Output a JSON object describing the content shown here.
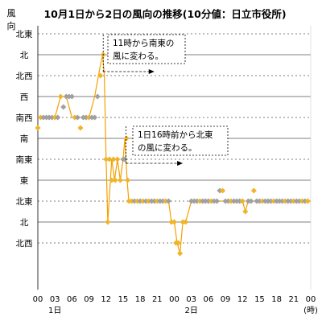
{
  "chart_data": {
    "type": "line",
    "title": "10月1日から2日の風向の推移(10分値：日立市役所)",
    "ylabel": "風向",
    "y_categories": [
      "北西",
      "北",
      "北東",
      "東",
      "南東",
      "南",
      "南西",
      "西",
      "北西",
      "北",
      "北東"
    ],
    "x_ticks": [
      "00",
      "03",
      "06",
      "09",
      "12",
      "15",
      "18",
      "21",
      "00",
      "03",
      "06",
      "09",
      "12",
      "15",
      "18",
      "21",
      "00"
    ],
    "x_sub_labels": [
      {
        "hour": 3,
        "text": "1日"
      },
      {
        "hour": 27,
        "text": "2日"
      },
      {
        "hour": 48,
        "text": "(時)"
      }
    ],
    "xlim": [
      0,
      48
    ],
    "ylim": [
      -0.5,
      10.5
    ],
    "colors": {
      "line": "#f5a000",
      "marker_orange": "#f0b429",
      "marker_gray": "#a0a0a0",
      "grid": "#000000",
      "arrow": "#000000"
    },
    "annotations": [
      {
        "text": [
          "11時から南東の",
          "風に変わる。"
        ],
        "anchor_hour": 11.5,
        "arrow_to_hour": 20.5
      },
      {
        "text": [
          "1日16時前から北東",
          "の風に変わる。"
        ],
        "anchor_hour": 15.5,
        "arrow_to_hour": 25.5
      }
    ],
    "series": [
      {
        "type": "line",
        "points": [
          [
            0,
            6
          ],
          [
            1,
            6
          ],
          [
            2,
            6
          ],
          [
            3,
            6
          ],
          [
            4,
            7
          ],
          [
            5,
            7
          ],
          [
            6,
            6
          ],
          [
            7,
            6
          ],
          [
            8,
            6
          ],
          [
            9,
            6
          ],
          [
            10,
            7
          ],
          [
            11,
            8.5
          ],
          [
            11.4,
            9
          ],
          [
            11.7,
            8
          ],
          [
            12,
            4
          ],
          [
            12.3,
            1
          ],
          [
            13,
            4
          ],
          [
            13.5,
            3
          ],
          [
            14,
            4
          ],
          [
            14.5,
            3
          ],
          [
            15,
            4
          ],
          [
            15.3,
            5
          ],
          [
            15.7,
            3
          ],
          [
            16,
            2
          ],
          [
            17,
            2
          ],
          [
            18,
            2
          ],
          [
            19,
            2
          ],
          [
            20,
            2
          ],
          [
            21,
            2
          ],
          [
            22,
            2
          ],
          [
            23,
            2
          ],
          [
            23.5,
            1
          ],
          [
            24,
            1
          ],
          [
            24.5,
            0
          ],
          [
            25,
            -0.5
          ],
          [
            25.5,
            1
          ],
          [
            26,
            1
          ],
          [
            27,
            2
          ],
          [
            28,
            2
          ],
          [
            29,
            2
          ],
          [
            30,
            2
          ],
          [
            31,
            2
          ],
          [
            32,
            2
          ],
          [
            33,
            2
          ],
          [
            34,
            2
          ],
          [
            35,
            2
          ],
          [
            36,
            2
          ],
          [
            36.5,
            1.5
          ],
          [
            37,
            2
          ],
          [
            38,
            2
          ],
          [
            39,
            2
          ],
          [
            40,
            2
          ],
          [
            41,
            2
          ],
          [
            42,
            2
          ],
          [
            43,
            2
          ],
          [
            44,
            2
          ],
          [
            45,
            2
          ],
          [
            46,
            2
          ],
          [
            47,
            2
          ],
          [
            48,
            2
          ]
        ],
        "markers": [
          [
            0,
            5.5,
            "o"
          ],
          [
            0.5,
            6,
            "o"
          ],
          [
            1,
            6,
            "g"
          ],
          [
            1.5,
            6,
            "g"
          ],
          [
            2,
            6,
            "g"
          ],
          [
            2.5,
            6,
            "g"
          ],
          [
            3,
            6,
            "o"
          ],
          [
            3.5,
            6,
            "g"
          ],
          [
            4,
            7,
            "o"
          ],
          [
            4.5,
            6.5,
            "g"
          ],
          [
            5,
            7,
            "g"
          ],
          [
            5.5,
            7,
            "g"
          ],
          [
            6,
            7,
            "g"
          ],
          [
            6.5,
            6,
            "o"
          ],
          [
            7,
            6,
            "g"
          ],
          [
            7.5,
            5.5,
            "o"
          ],
          [
            8,
            6,
            "g"
          ],
          [
            8.5,
            6,
            "g"
          ],
          [
            9,
            6,
            "o"
          ],
          [
            9.5,
            6,
            "g"
          ],
          [
            10,
            6,
            "g"
          ],
          [
            10.5,
            7,
            "g"
          ],
          [
            11,
            8,
            "o"
          ],
          [
            11.5,
            9,
            "o"
          ],
          [
            12,
            4,
            "o"
          ],
          [
            12.3,
            1,
            "o"
          ],
          [
            12.6,
            4,
            "o"
          ],
          [
            13,
            3,
            "o"
          ],
          [
            13.3,
            4,
            "o"
          ],
          [
            13.6,
            3,
            "o"
          ],
          [
            14,
            4,
            "o"
          ],
          [
            14.5,
            3,
            "o"
          ],
          [
            15,
            4,
            "g"
          ],
          [
            15.3,
            4,
            "g"
          ],
          [
            15.6,
            5,
            "o"
          ],
          [
            15.8,
            3,
            "o"
          ],
          [
            16,
            2,
            "o"
          ],
          [
            16.5,
            2,
            "o"
          ],
          [
            17,
            2,
            "g"
          ],
          [
            17.5,
            2,
            "o"
          ],
          [
            18,
            2,
            "g"
          ],
          [
            18.5,
            2,
            "o"
          ],
          [
            19,
            2,
            "g"
          ],
          [
            19.5,
            2,
            "o"
          ],
          [
            20,
            2,
            "g"
          ],
          [
            20.5,
            2,
            "g"
          ],
          [
            21,
            2,
            "o"
          ],
          [
            21.5,
            2,
            "g"
          ],
          [
            22,
            2,
            "g"
          ],
          [
            22.5,
            2,
            "o"
          ],
          [
            23,
            2,
            "g"
          ],
          [
            23.5,
            1,
            "o"
          ],
          [
            24,
            1,
            "o"
          ],
          [
            24.3,
            0,
            "o"
          ],
          [
            24.7,
            0,
            "o"
          ],
          [
            25,
            -0.5,
            "o"
          ],
          [
            25.5,
            1,
            "o"
          ],
          [
            26,
            1,
            "o"
          ],
          [
            27,
            2,
            "g"
          ],
          [
            27.5,
            2,
            "g"
          ],
          [
            28,
            2,
            "g"
          ],
          [
            28.5,
            2,
            "o"
          ],
          [
            29,
            2,
            "g"
          ],
          [
            29.5,
            2,
            "g"
          ],
          [
            30,
            2,
            "g"
          ],
          [
            30.5,
            2,
            "o"
          ],
          [
            31,
            2,
            "g"
          ],
          [
            31.5,
            2,
            "g"
          ],
          [
            32,
            2.5,
            "g"
          ],
          [
            32.5,
            2.5,
            "o"
          ],
          [
            33,
            2,
            "g"
          ],
          [
            33.5,
            2,
            "g"
          ],
          [
            34,
            2,
            "o"
          ],
          [
            34.5,
            2,
            "g"
          ],
          [
            35,
            2,
            "g"
          ],
          [
            35.5,
            2,
            "g"
          ],
          [
            36,
            2,
            "o"
          ],
          [
            36.5,
            1.5,
            "o"
          ],
          [
            37,
            2,
            "g"
          ],
          [
            37.5,
            2,
            "g"
          ],
          [
            38,
            2.5,
            "o"
          ],
          [
            38.5,
            2,
            "g"
          ],
          [
            39,
            2,
            "g"
          ],
          [
            39.5,
            2,
            "o"
          ],
          [
            40,
            2,
            "g"
          ],
          [
            40.5,
            2,
            "g"
          ],
          [
            41,
            2,
            "g"
          ],
          [
            41.5,
            2,
            "o"
          ],
          [
            42,
            2,
            "g"
          ],
          [
            42.5,
            2,
            "g"
          ],
          [
            43,
            2,
            "g"
          ],
          [
            43.5,
            2,
            "o"
          ],
          [
            44,
            2,
            "g"
          ],
          [
            44.5,
            2,
            "g"
          ],
          [
            45,
            2,
            "o"
          ],
          [
            45.5,
            2,
            "g"
          ],
          [
            46,
            2,
            "g"
          ],
          [
            46.5,
            2,
            "o"
          ],
          [
            47,
            2,
            "g"
          ],
          [
            47.5,
            2,
            "o"
          ]
        ]
      }
    ]
  }
}
